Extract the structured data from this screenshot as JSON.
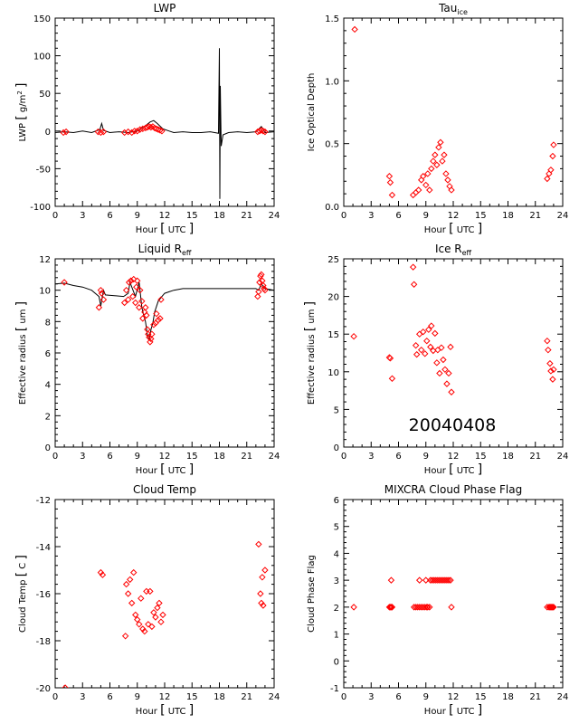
{
  "date_label": "20040408",
  "chart_data": [
    {
      "type": "line",
      "title": "LWP",
      "xlabel": "Hour [ UTC ]",
      "ylabel": "LWP [ g/m² ]",
      "xlim": [
        0,
        24
      ],
      "ylim": [
        -100,
        150
      ],
      "xticks": [
        0,
        3,
        6,
        9,
        12,
        15,
        18,
        21,
        24
      ],
      "yticks": [
        -100,
        -50,
        0,
        50,
        100,
        150
      ],
      "series": [
        {
          "style": "line",
          "x": [
            0,
            1,
            2,
            3,
            4,
            4.9,
            5.1,
            5.3,
            6,
            7,
            8,
            9,
            9.5,
            10,
            10.4,
            10.8,
            11.2,
            11.8,
            12.5,
            13,
            14,
            15,
            16,
            17,
            17.9,
            18.0,
            18.05,
            18.1,
            18.2,
            18.4,
            19,
            20,
            21,
            22,
            22.6,
            23,
            24
          ],
          "y": [
            -2,
            -1,
            -2,
            0,
            -2,
            2,
            10,
            1,
            -2,
            -1,
            -2,
            0,
            4,
            8,
            12,
            14,
            10,
            3,
            0,
            -2,
            -1,
            -2,
            -2,
            -1,
            -3,
            110,
            -90,
            60,
            -20,
            -5,
            -2,
            -1,
            -2,
            -1,
            6,
            -2,
            -1
          ]
        },
        {
          "style": "points",
          "x": [
            0.9,
            1.2,
            4.7,
            5.0,
            5.3,
            7.6,
            8.0,
            8.4,
            8.7,
            9.0,
            9.3,
            9.6,
            9.9,
            10.1,
            10.3,
            10.5,
            10.7,
            10.9,
            11.1,
            11.3,
            11.5,
            11.7,
            22.2,
            22.4,
            22.6,
            22.8,
            23.0
          ],
          "y": [
            -2,
            -1,
            -1,
            -2,
            -1,
            -2,
            -1,
            -2,
            0,
            0,
            2,
            3,
            4,
            5,
            6,
            5,
            6,
            4,
            3,
            2,
            1,
            0,
            -1,
            0,
            1,
            0,
            -1
          ]
        }
      ]
    },
    {
      "type": "scatter",
      "title": "Tau_ice",
      "xlabel": "Hour [ UTC ]",
      "ylabel": "Ice Optical Depth",
      "xlim": [
        0,
        24
      ],
      "ylim": [
        0,
        1.5
      ],
      "xticks": [
        0,
        3,
        6,
        9,
        12,
        15,
        18,
        21,
        24
      ],
      "yticks": [
        0.0,
        0.5,
        1.0,
        1.5
      ],
      "series": [
        {
          "style": "points",
          "x": [
            1.2,
            5.0,
            5.1,
            5.3,
            7.6,
            7.9,
            8.2,
            8.5,
            8.7,
            9.0,
            9.2,
            9.4,
            9.6,
            9.8,
            10.0,
            10.2,
            10.4,
            10.6,
            10.8,
            11.0,
            11.2,
            11.4,
            11.6,
            11.8,
            22.3,
            22.5,
            22.7,
            22.9,
            23.0
          ],
          "y": [
            1.41,
            0.24,
            0.19,
            0.09,
            0.09,
            0.11,
            0.13,
            0.21,
            0.24,
            0.17,
            0.26,
            0.13,
            0.3,
            0.36,
            0.41,
            0.33,
            0.47,
            0.51,
            0.36,
            0.41,
            0.26,
            0.21,
            0.16,
            0.13,
            0.22,
            0.26,
            0.29,
            0.4,
            0.49
          ]
        }
      ]
    },
    {
      "type": "line",
      "title": "Liquid R_eff",
      "xlabel": "Hour [ UTC ]",
      "ylabel": "Effective radius [ um ]",
      "xlim": [
        0,
        24
      ],
      "ylim": [
        0,
        12
      ],
      "xticks": [
        0,
        3,
        6,
        9,
        12,
        15,
        18,
        21,
        24
      ],
      "yticks": [
        0,
        2,
        4,
        6,
        8,
        10,
        12
      ],
      "series": [
        {
          "style": "line",
          "x": [
            0,
            1,
            2,
            3,
            4,
            4.8,
            5.0,
            5.3,
            5.5,
            7.5,
            8.0,
            8.2,
            8.6,
            8.8,
            9.2,
            9.5,
            9.7,
            9.9,
            10.1,
            10.3,
            10.5,
            10.7,
            10.9,
            11.3,
            11.7,
            12,
            12.5,
            13,
            14,
            15,
            16,
            17,
            18,
            19,
            20,
            21,
            22,
            22.3,
            22.6,
            23,
            24
          ],
          "y": [
            10.4,
            10.45,
            10.3,
            10.2,
            10.0,
            9.6,
            9.0,
            10.0,
            9.7,
            9.6,
            9.8,
            10.5,
            9.9,
            9.6,
            10.5,
            8.9,
            8.4,
            8.0,
            7.2,
            6.8,
            7.5,
            7.9,
            8.6,
            9.3,
            9.6,
            9.8,
            9.9,
            10.0,
            10.1,
            10.1,
            10.1,
            10.1,
            10.1,
            10.1,
            10.1,
            10.1,
            10.1,
            10.0,
            10.4,
            10.1,
            10.0
          ]
        },
        {
          "style": "points",
          "x": [
            1.0,
            4.8,
            5.0,
            5.1,
            5.3,
            7.6,
            7.8,
            8.0,
            8.1,
            8.3,
            8.5,
            8.6,
            8.8,
            8.9,
            9.0,
            9.2,
            9.3,
            9.5,
            9.6,
            9.8,
            9.9,
            10.0,
            10.1,
            10.2,
            10.3,
            10.4,
            10.5,
            10.6,
            10.8,
            11.0,
            11.1,
            11.3,
            11.5,
            11.6,
            22.2,
            22.3,
            22.4,
            22.5,
            22.6,
            22.7,
            22.8,
            22.9,
            23.0
          ],
          "y": [
            10.5,
            8.9,
            10.0,
            9.8,
            9.4,
            9.2,
            10.0,
            9.4,
            10.5,
            10.6,
            9.6,
            10.7,
            9.2,
            10.2,
            10.6,
            8.9,
            10.0,
            9.3,
            8.2,
            8.6,
            8.9,
            8.4,
            7.5,
            7.2,
            7.0,
            6.7,
            6.9,
            7.2,
            7.8,
            7.9,
            8.5,
            8.1,
            8.2,
            9.4,
            9.6,
            9.9,
            10.5,
            10.9,
            11.0,
            10.6,
            10.3,
            10.1,
            10.0
          ]
        }
      ]
    },
    {
      "type": "scatter",
      "title": "Ice R_eff",
      "xlabel": "Hour [ UTC ]",
      "ylabel": "Effective radius [ um ]",
      "xlim": [
        0,
        24
      ],
      "ylim": [
        0,
        25
      ],
      "xticks": [
        0,
        3,
        6,
        9,
        12,
        15,
        18,
        21,
        24
      ],
      "yticks": [
        0,
        5,
        10,
        15,
        20,
        25
      ],
      "series": [
        {
          "style": "points",
          "x": [
            1.1,
            5.0,
            5.1,
            5.3,
            7.6,
            7.7,
            7.9,
            8.0,
            8.3,
            8.5,
            8.7,
            8.9,
            9.1,
            9.3,
            9.5,
            9.6,
            9.8,
            10.0,
            10.2,
            10.3,
            10.5,
            10.7,
            10.9,
            11.1,
            11.3,
            11.5,
            11.7,
            11.8,
            22.3,
            22.4,
            22.6,
            22.7,
            22.9,
            23.0
          ],
          "y": [
            14.7,
            11.9,
            11.8,
            9.1,
            23.9,
            21.6,
            13.5,
            12.3,
            15.0,
            12.9,
            15.3,
            12.4,
            14.1,
            15.6,
            13.3,
            16.1,
            12.8,
            15.1,
            11.2,
            12.9,
            9.8,
            13.2,
            11.6,
            10.3,
            8.4,
            9.8,
            13.3,
            7.3,
            14.1,
            12.9,
            11.1,
            10.1,
            9.0,
            10.3
          ]
        }
      ]
    },
    {
      "type": "scatter",
      "title": "Cloud Temp",
      "xlabel": "Hour [ UTC ]",
      "ylabel": "Cloud Temp [ C ]",
      "xlim": [
        0,
        24
      ],
      "ylim": [
        -20,
        -12
      ],
      "xticks": [
        0,
        3,
        6,
        9,
        12,
        15,
        18,
        21,
        24
      ],
      "yticks": [
        -20,
        -18,
        -16,
        -14,
        -12
      ],
      "series": [
        {
          "style": "points",
          "x": [
            1.1,
            5.0,
            5.2,
            7.7,
            7.8,
            8.0,
            8.2,
            8.4,
            8.6,
            8.8,
            9.0,
            9.2,
            9.4,
            9.6,
            9.8,
            10.0,
            10.2,
            10.4,
            10.6,
            10.8,
            11.0,
            11.2,
            11.4,
            11.6,
            11.8,
            22.3,
            22.5,
            22.6,
            22.7,
            22.8,
            23.0
          ],
          "y": [
            -20.0,
            -15.1,
            -15.2,
            -17.8,
            -15.6,
            -16.0,
            -15.4,
            -16.4,
            -15.1,
            -16.9,
            -17.1,
            -17.3,
            -16.2,
            -17.5,
            -17.6,
            -15.9,
            -17.3,
            -15.9,
            -17.4,
            -16.8,
            -17.0,
            -16.6,
            -16.4,
            -17.2,
            -16.9,
            -13.9,
            -16.0,
            -16.4,
            -15.3,
            -16.5,
            -15.0
          ]
        }
      ]
    },
    {
      "type": "scatter",
      "title": "MIXCRA Cloud Phase Flag",
      "xlabel": "Hour [ UTC ]",
      "ylabel": "Cloud Phase Flag",
      "xlim": [
        0,
        24
      ],
      "ylim": [
        -1,
        6
      ],
      "xticks": [
        0,
        3,
        6,
        9,
        12,
        15,
        18,
        21,
        24
      ],
      "yticks": [
        -1,
        0,
        1,
        2,
        3,
        4,
        5,
        6
      ],
      "series": [
        {
          "style": "points",
          "x": [
            1.1,
            5.0,
            5.1,
            5.2,
            5.3,
            7.7,
            7.9,
            8.1,
            8.3,
            8.5,
            8.7,
            8.9,
            9.1,
            9.2,
            9.4,
            11.8,
            22.3,
            22.5,
            22.6,
            22.7,
            22.8,
            22.9,
            23.0,
            5.2,
            8.3,
            9.0,
            9.5,
            9.7,
            9.9,
            10.1,
            10.3,
            10.5,
            10.7,
            10.9,
            11.1,
            11.3,
            11.5,
            11.7
          ],
          "y": [
            2,
            2,
            2,
            2,
            2,
            2,
            2,
            2,
            2,
            2,
            2,
            2,
            2,
            2,
            2,
            2,
            2,
            2,
            2,
            2,
            2,
            2,
            2,
            3,
            3,
            3,
            3,
            3,
            3,
            3,
            3,
            3,
            3,
            3,
            3,
            3,
            3,
            3
          ]
        }
      ]
    }
  ]
}
